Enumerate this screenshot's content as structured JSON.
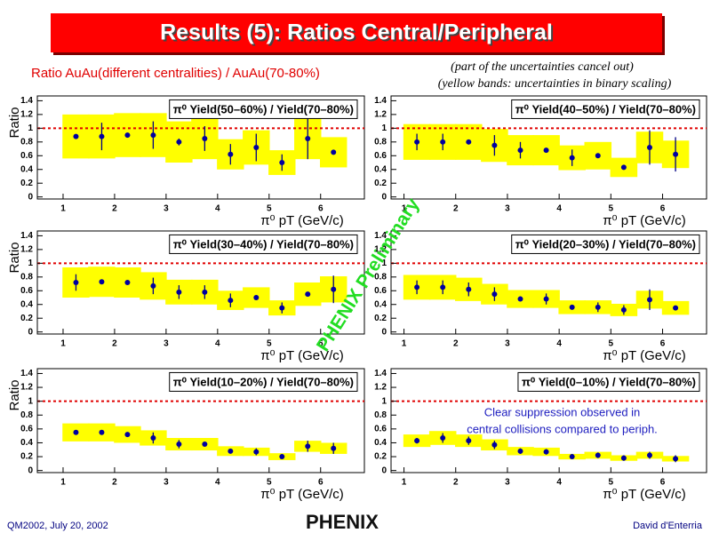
{
  "title": "Results (5): Ratios Central/Peripheral",
  "subtitle": "Ratio AuAu(different centralities) / AuAu(70-80%)",
  "notes": [
    "(part of the uncertainties cancel out)",
    "(yellow bands: uncertainties in binary scaling)"
  ],
  "watermark": "PHENIX Preliminary",
  "footer": {
    "left": "QM2002, July 20, 2002",
    "center": "PHENIX",
    "right": "David d'Enterria"
  },
  "chart_data": [
    {
      "type": "scatter",
      "label": "π⁰ Yield(50–60%) / Yield(70–80%)",
      "ylabel": "Ratio",
      "xlabel": "π⁰ pT (GeV/c)",
      "x": [
        1.25,
        1.75,
        2.25,
        2.75,
        3.25,
        3.75,
        4.25,
        4.75,
        5.25,
        5.75,
        6.25
      ],
      "values": [
        0.88,
        0.88,
        0.9,
        0.9,
        0.8,
        0.85,
        0.62,
        0.72,
        0.5,
        0.85,
        0.65
      ],
      "errors": [
        0.03,
        0.2,
        0.03,
        0.2,
        0.05,
        0.18,
        0.15,
        0.2,
        0.12,
        0.3,
        0.03
      ],
      "band": [
        0.32,
        0.32,
        0.32,
        0.32,
        0.3,
        0.3,
        0.22,
        0.25,
        0.18,
        0.3,
        0.22
      ],
      "reference": 1,
      "xlim": [
        0.5,
        6.85
      ],
      "ylim": [
        -0.03,
        1.47
      ],
      "xticks": [
        1,
        2,
        3,
        4,
        5,
        6
      ],
      "yticks": [
        0,
        0.2,
        0.4,
        0.6,
        0.8,
        1,
        1.2,
        1.4
      ]
    },
    {
      "type": "scatter",
      "label": "π⁰ Yield(40–50%) / Yield(70–80%)",
      "xlabel": "π⁰ pT (GeV/c)",
      "x": [
        1.25,
        1.75,
        2.25,
        2.75,
        3.25,
        3.75,
        4.25,
        4.75,
        5.25,
        5.75,
        6.25
      ],
      "values": [
        0.8,
        0.8,
        0.8,
        0.75,
        0.68,
        0.68,
        0.57,
        0.6,
        0.43,
        0.72,
        0.62
      ],
      "errors": [
        0.12,
        0.12,
        0.03,
        0.15,
        0.12,
        0.03,
        0.12,
        0.03,
        0.03,
        0.25,
        0.25
      ],
      "band": [
        0.26,
        0.26,
        0.26,
        0.24,
        0.22,
        0.22,
        0.18,
        0.2,
        0.14,
        0.23,
        0.2
      ],
      "reference": 1,
      "xlim": [
        0.75,
        6.85
      ],
      "ylim": [
        -0.03,
        1.47
      ],
      "xticks": [
        1,
        2,
        3,
        4,
        5,
        6
      ],
      "yticks": [
        0,
        0.2,
        0.4,
        0.6,
        0.8,
        1,
        1.2,
        1.4
      ]
    },
    {
      "type": "scatter",
      "label": "π⁰ Yield(30–40%) / Yield(70–80%)",
      "ylabel": "Ratio",
      "xlabel": "π⁰ pT (GeV/c)",
      "x": [
        1.25,
        1.75,
        2.25,
        2.75,
        3.25,
        3.75,
        4.25,
        4.75,
        5.25,
        5.75,
        6.25
      ],
      "values": [
        0.72,
        0.73,
        0.72,
        0.67,
        0.58,
        0.58,
        0.46,
        0.5,
        0.35,
        0.55,
        0.62
      ],
      "errors": [
        0.12,
        0.03,
        0.03,
        0.12,
        0.1,
        0.1,
        0.1,
        0.03,
        0.08,
        0.03,
        0.2
      ],
      "band": [
        0.22,
        0.22,
        0.22,
        0.2,
        0.18,
        0.18,
        0.14,
        0.15,
        0.11,
        0.17,
        0.19
      ],
      "reference": 1,
      "xlim": [
        0.5,
        6.85
      ],
      "ylim": [
        -0.03,
        1.47
      ],
      "xticks": [
        1,
        2,
        3,
        4,
        5,
        6
      ],
      "yticks": [
        0,
        0.2,
        0.4,
        0.6,
        0.8,
        1,
        1.2,
        1.4
      ]
    },
    {
      "type": "scatter",
      "label": "π⁰ Yield(20–30%) / Yield(70–80%)",
      "xlabel": "π⁰ pT (GeV/c)",
      "x": [
        1.25,
        1.75,
        2.25,
        2.75,
        3.25,
        3.75,
        4.25,
        4.75,
        5.25,
        5.75,
        6.25
      ],
      "values": [
        0.65,
        0.65,
        0.62,
        0.55,
        0.48,
        0.48,
        0.36,
        0.36,
        0.32,
        0.47,
        0.35
      ],
      "errors": [
        0.1,
        0.1,
        0.1,
        0.1,
        0.03,
        0.08,
        0.03,
        0.07,
        0.07,
        0.15,
        0.03
      ],
      "band": [
        0.18,
        0.18,
        0.17,
        0.15,
        0.13,
        0.13,
        0.1,
        0.1,
        0.09,
        0.13,
        0.1
      ],
      "reference": 1,
      "xlim": [
        0.75,
        6.85
      ],
      "ylim": [
        -0.03,
        1.47
      ],
      "xticks": [
        1,
        2,
        3,
        4,
        5,
        6
      ],
      "yticks": [
        0,
        0.2,
        0.4,
        0.6,
        0.8,
        1,
        1.2,
        1.4
      ]
    },
    {
      "type": "scatter",
      "label": "π⁰ Yield(10–20%) / Yield(70–80%)",
      "ylabel": "Ratio",
      "xlabel": "π⁰ pT (GeV/c)",
      "x": [
        1.25,
        1.75,
        2.25,
        2.75,
        3.25,
        3.75,
        4.25,
        4.75,
        5.25,
        5.75,
        6.25
      ],
      "values": [
        0.55,
        0.55,
        0.52,
        0.47,
        0.38,
        0.38,
        0.28,
        0.27,
        0.2,
        0.35,
        0.32
      ],
      "errors": [
        0.03,
        0.03,
        0.03,
        0.08,
        0.06,
        0.03,
        0.03,
        0.05,
        0.03,
        0.08,
        0.08
      ],
      "band": [
        0.13,
        0.13,
        0.12,
        0.11,
        0.09,
        0.09,
        0.07,
        0.06,
        0.05,
        0.08,
        0.08
      ],
      "reference": 1,
      "xlim": [
        0.5,
        6.85
      ],
      "ylim": [
        -0.03,
        1.47
      ],
      "xticks": [
        1,
        2,
        3,
        4,
        5,
        6
      ],
      "yticks": [
        0,
        0.2,
        0.4,
        0.6,
        0.8,
        1,
        1.2,
        1.4
      ]
    },
    {
      "type": "scatter",
      "label": "π⁰ Yield(0–10%) / Yield(70–80%)",
      "xlabel": "π⁰ pT (GeV/c)",
      "annotation": [
        "Clear suppression observed in",
        "central collisions compared to periph."
      ],
      "x": [
        1.25,
        1.75,
        2.25,
        2.75,
        3.25,
        3.75,
        4.25,
        4.75,
        5.25,
        5.75,
        6.25
      ],
      "values": [
        0.43,
        0.47,
        0.43,
        0.37,
        0.28,
        0.27,
        0.2,
        0.22,
        0.18,
        0.22,
        0.17
      ],
      "errors": [
        0.04,
        0.07,
        0.06,
        0.06,
        0.04,
        0.04,
        0.02,
        0.04,
        0.04,
        0.05,
        0.05
      ],
      "band": [
        0.09,
        0.1,
        0.09,
        0.08,
        0.06,
        0.06,
        0.04,
        0.05,
        0.04,
        0.05,
        0.04
      ],
      "reference": 1,
      "xlim": [
        0.75,
        6.85
      ],
      "ylim": [
        -0.03,
        1.47
      ],
      "xticks": [
        1,
        2,
        3,
        4,
        5,
        6
      ],
      "yticks": [
        0,
        0.2,
        0.4,
        0.6,
        0.8,
        1,
        1.2,
        1.4
      ]
    }
  ]
}
